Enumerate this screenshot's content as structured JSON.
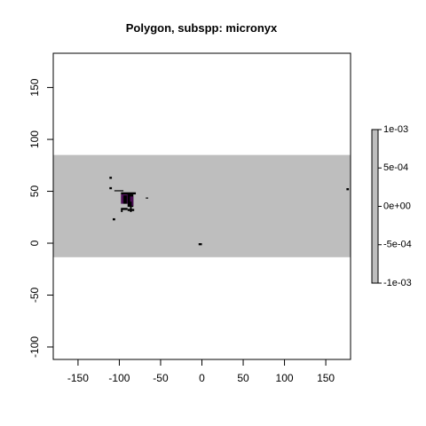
{
  "chart_data": {
    "type": "map",
    "title": "Polygon, subspp: micronyx",
    "xlabel": "",
    "ylabel": "",
    "xlim": [
      -180,
      180
    ],
    "ylim": [
      -112,
      183
    ],
    "x_ticks": [
      -150,
      -100,
      -50,
      0,
      50,
      100,
      150
    ],
    "x_tick_labels": [
      "-150",
      "-100",
      "-50",
      "0",
      "50",
      "100",
      "150"
    ],
    "y_ticks": [
      -100,
      -50,
      0,
      50,
      100,
      150
    ],
    "y_tick_labels": [
      "-100",
      "-50",
      "0",
      "50",
      "100",
      "150"
    ],
    "grid": false,
    "background_band": {
      "y_min": -13.5,
      "y_max": 85,
      "color": "#bebebe"
    },
    "polygons": [
      {
        "x": [
          -112,
          -109
        ],
        "y": [
          62,
          64
        ],
        "color": "#000000"
      },
      {
        "x": [
          -112,
          -109
        ],
        "y": [
          52,
          54
        ],
        "color": "#000000"
      },
      {
        "x": [
          -106,
          -95
        ],
        "y": [
          50,
          51
        ],
        "color": "#000000"
      },
      {
        "x": [
          -98,
          -80
        ],
        "y": [
          47,
          49
        ],
        "color": "#000000"
      },
      {
        "x": [
          -98,
          -85
        ],
        "y": [
          38,
          47
        ],
        "color": "#4b0d55"
      },
      {
        "x": [
          -95,
          -91
        ],
        "y": [
          38,
          46
        ],
        "color": "#000000"
      },
      {
        "x": [
          -90,
          -83
        ],
        "y": [
          35,
          47
        ],
        "color": "#000000"
      },
      {
        "x": [
          -87,
          -83
        ],
        "y": [
          36,
          45
        ],
        "color": "#4b0d55"
      },
      {
        "x": [
          -87,
          -85
        ],
        "y": [
          30,
          40
        ],
        "color": "#000000"
      },
      {
        "x": [
          -98,
          -90
        ],
        "y": [
          32,
          34
        ],
        "color": "#000000"
      },
      {
        "x": [
          -98,
          -96
        ],
        "y": [
          30,
          33
        ],
        "color": "#000000"
      },
      {
        "x": [
          -90,
          -82
        ],
        "y": [
          31,
          33
        ],
        "color": "#000000"
      },
      {
        "x": [
          -108,
          -105
        ],
        "y": [
          22,
          24
        ],
        "color": "#000000"
      },
      {
        "x": [
          -68,
          -65
        ],
        "y": [
          43,
          44
        ],
        "color": "#000000"
      },
      {
        "x": [
          -4,
          0
        ],
        "y": [
          -2,
          0
        ],
        "color": "#000000"
      },
      {
        "x": [
          175,
          178
        ],
        "y": [
          51,
          53
        ],
        "color": "#000000"
      }
    ],
    "legend": {
      "position": "right",
      "type": "colorbar",
      "color": "#bebebe",
      "range": [
        -0.001,
        0.001
      ],
      "ticks": [
        0.001,
        0.0005,
        0,
        -0.0005,
        -0.001
      ],
      "labels": [
        "1e-03",
        "5e-04",
        "0e+00",
        "-5e-04",
        "-1e-03"
      ]
    }
  }
}
